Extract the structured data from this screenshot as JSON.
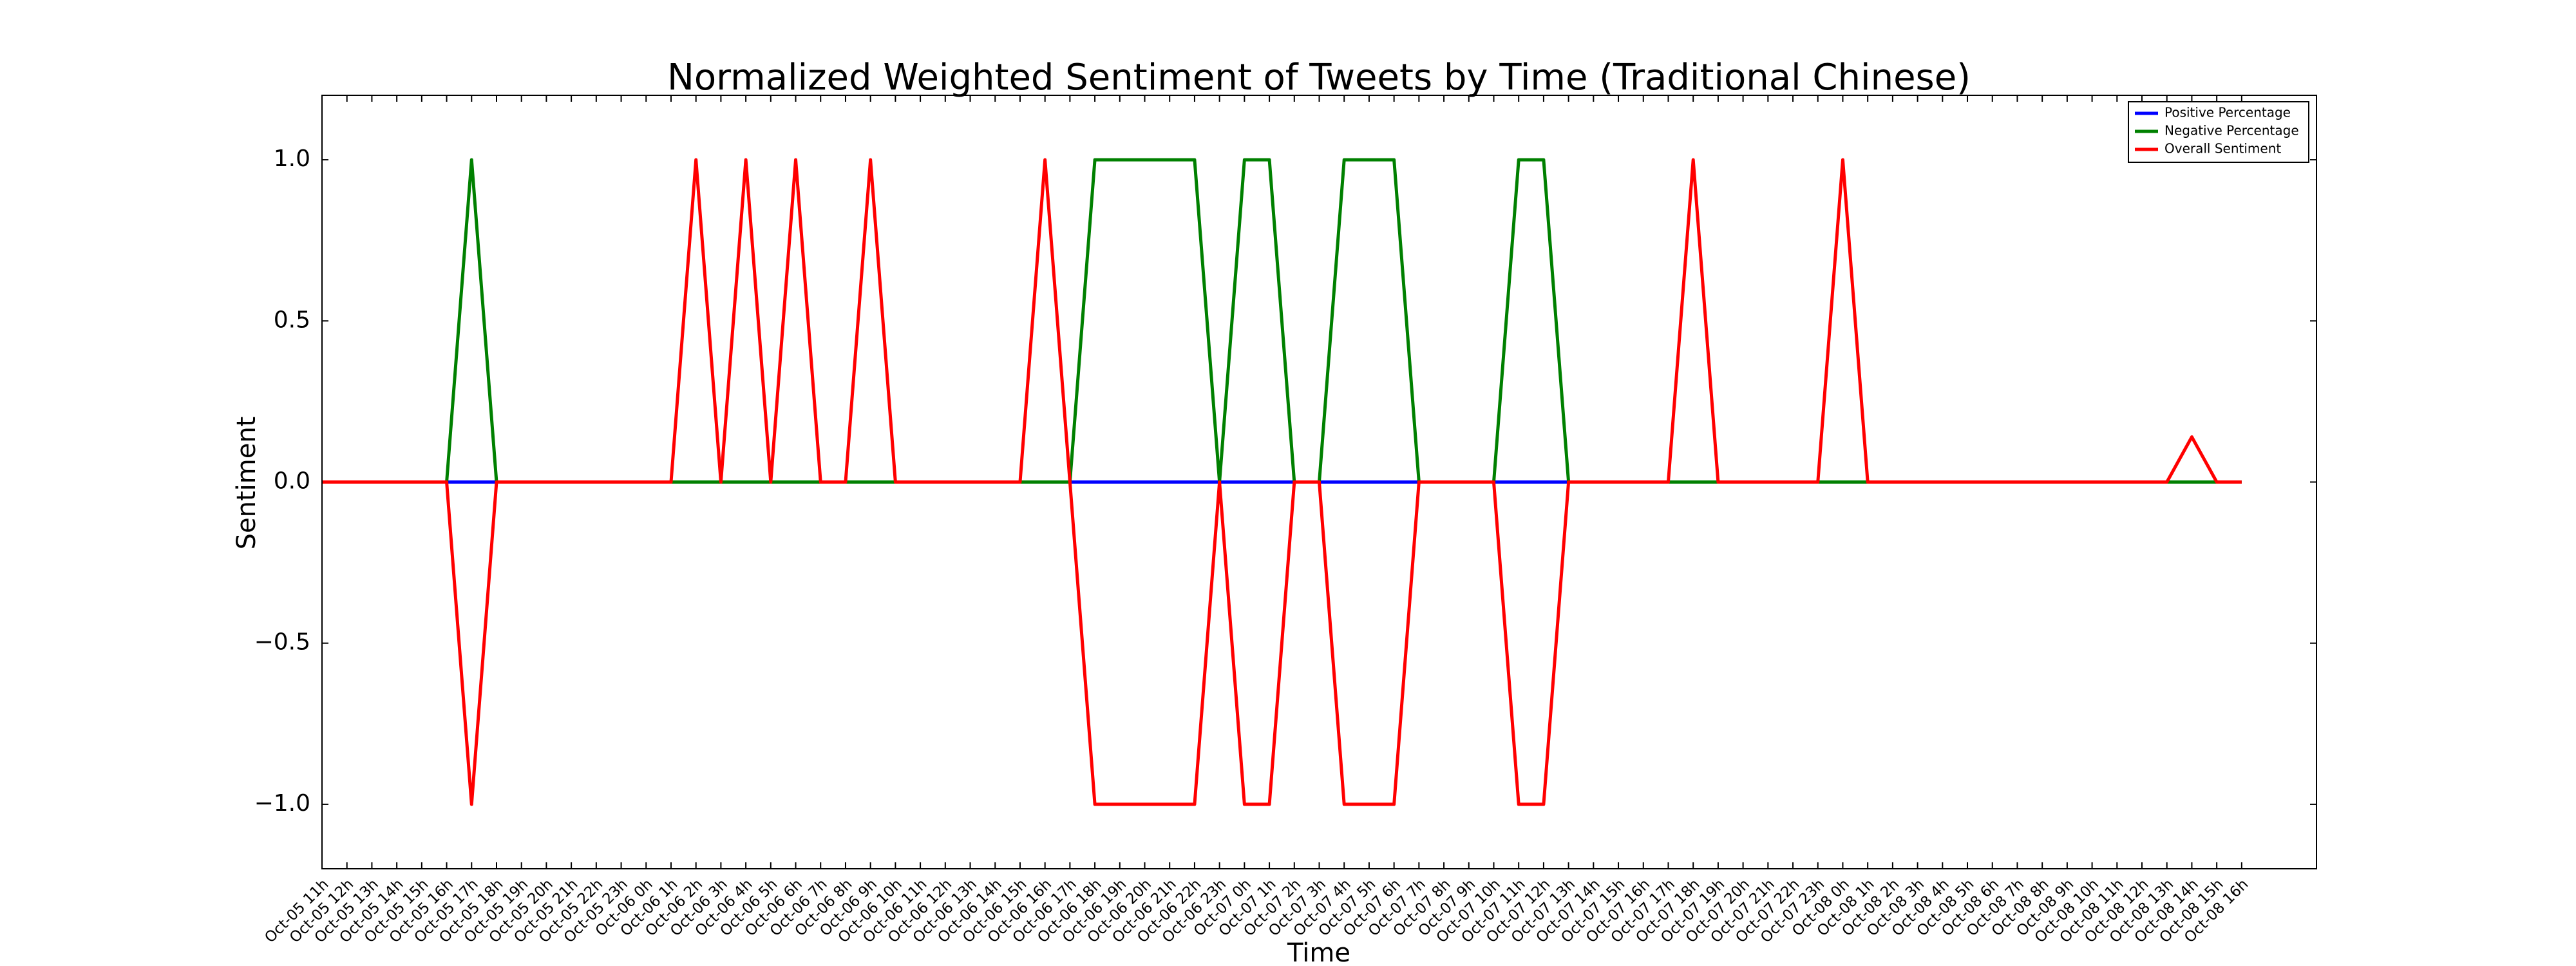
{
  "chart_data": {
    "type": "line",
    "title": "Normalized Weighted Sentiment of Tweets by Time (Traditional Chinese)",
    "x_label": "Time",
    "y_label": "Sentiment",
    "categories": [
      "Oct-05 11h",
      "Oct-05 12h",
      "Oct-05 13h",
      "Oct-05 14h",
      "Oct-05 15h",
      "Oct-05 16h",
      "Oct-05 17h",
      "Oct-05 18h",
      "Oct-05 19h",
      "Oct-05 20h",
      "Oct-05 21h",
      "Oct-05 22h",
      "Oct-05 23h",
      "Oct-06 0h",
      "Oct-06 1h",
      "Oct-06 2h",
      "Oct-06 3h",
      "Oct-06 4h",
      "Oct-06 5h",
      "Oct-06 6h",
      "Oct-06 7h",
      "Oct-06 8h",
      "Oct-06 9h",
      "Oct-06 10h",
      "Oct-06 11h",
      "Oct-06 12h",
      "Oct-06 13h",
      "Oct-06 14h",
      "Oct-06 15h",
      "Oct-06 16h",
      "Oct-06 17h",
      "Oct-06 18h",
      "Oct-06 19h",
      "Oct-06 20h",
      "Oct-06 21h",
      "Oct-06 22h",
      "Oct-06 23h",
      "Oct-07 0h",
      "Oct-07 1h",
      "Oct-07 2h",
      "Oct-07 3h",
      "Oct-07 4h",
      "Oct-07 5h",
      "Oct-07 6h",
      "Oct-07 7h",
      "Oct-07 8h",
      "Oct-07 9h",
      "Oct-07 10h",
      "Oct-07 11h",
      "Oct-07 12h",
      "Oct-07 13h",
      "Oct-07 14h",
      "Oct-07 15h",
      "Oct-07 16h",
      "Oct-07 17h",
      "Oct-07 18h",
      "Oct-07 19h",
      "Oct-07 20h",
      "Oct-07 21h",
      "Oct-07 22h",
      "Oct-07 23h",
      "Oct-08 0h",
      "Oct-08 1h",
      "Oct-08 2h",
      "Oct-08 3h",
      "Oct-08 4h",
      "Oct-08 5h",
      "Oct-08 6h",
      "Oct-08 7h",
      "Oct-08 8h",
      "Oct-08 9h",
      "Oct-08 10h",
      "Oct-08 11h",
      "Oct-08 12h",
      "Oct-08 13h",
      "Oct-08 14h",
      "Oct-08 15h",
      "Oct-08 16h"
    ],
    "xlim": [
      0,
      80
    ],
    "series": [
      {
        "name": "Positive Percentage",
        "color": "#0000ff",
        "values": [
          0,
          0,
          0,
          0,
          0,
          0,
          0,
          0,
          0,
          0,
          0,
          0,
          0,
          0,
          0,
          0,
          0,
          0,
          0,
          0,
          0,
          0,
          0,
          0,
          0,
          0,
          0,
          0,
          0,
          0,
          0,
          0,
          0,
          0,
          0,
          0,
          0,
          0,
          0,
          0,
          0,
          0,
          0,
          0,
          0,
          0,
          0,
          0,
          0,
          0,
          0,
          0,
          0,
          0,
          0,
          0,
          0,
          0,
          0,
          0,
          0,
          0,
          0,
          0,
          0,
          0,
          0,
          0,
          0,
          0,
          0,
          0,
          0,
          0,
          0,
          0,
          0,
          0
        ]
      },
      {
        "name": "Negative Percentage",
        "color": "#008000",
        "values": [
          0,
          0,
          0,
          0,
          0,
          0,
          1,
          0,
          0,
          0,
          0,
          0,
          0,
          0,
          0,
          0,
          0,
          0,
          0,
          0,
          0,
          0,
          0,
          0,
          0,
          0,
          0,
          0,
          0,
          0,
          0,
          1,
          1,
          1,
          1,
          1,
          0,
          1,
          1,
          0,
          0,
          1,
          1,
          1,
          0,
          0,
          0,
          0,
          1,
          1,
          0,
          0,
          0,
          0,
          0,
          0,
          0,
          0,
          0,
          0,
          0,
          0,
          0,
          0,
          0,
          0,
          0,
          0,
          0,
          0,
          0,
          0,
          0,
          0,
          0,
          0,
          0,
          0
        ]
      },
      {
        "name": "Overall Sentiment",
        "color": "#ff0000",
        "values": [
          0,
          0,
          0,
          0,
          0,
          0,
          -1,
          0,
          0,
          0,
          0,
          0,
          0,
          0,
          0,
          1,
          0,
          1,
          0,
          1,
          0,
          0,
          1,
          0,
          0,
          0,
          0,
          0,
          0,
          1,
          0,
          -1,
          -1,
          -1,
          -1,
          -1,
          0,
          -1,
          -1,
          0,
          0,
          -1,
          -1,
          -1,
          0,
          0,
          0,
          0,
          -1,
          -1,
          0,
          0,
          0,
          0,
          0,
          1,
          0,
          0,
          0,
          0,
          0,
          1,
          0,
          0,
          0,
          0,
          0,
          0,
          0,
          0,
          0,
          0,
          0,
          0,
          0,
          0.14,
          0,
          0
        ]
      }
    ],
    "ylim": [
      -1.2,
      1.2
    ],
    "yticks": [
      {
        "value": -1.0,
        "label": "−1.0"
      },
      {
        "value": -0.5,
        "label": "−0.5"
      },
      {
        "value": 0.0,
        "label": "0.0"
      },
      {
        "value": 0.5,
        "label": "0.5"
      },
      {
        "value": 1.0,
        "label": "1.0"
      }
    ],
    "legend": "upper right",
    "grid": false
  }
}
